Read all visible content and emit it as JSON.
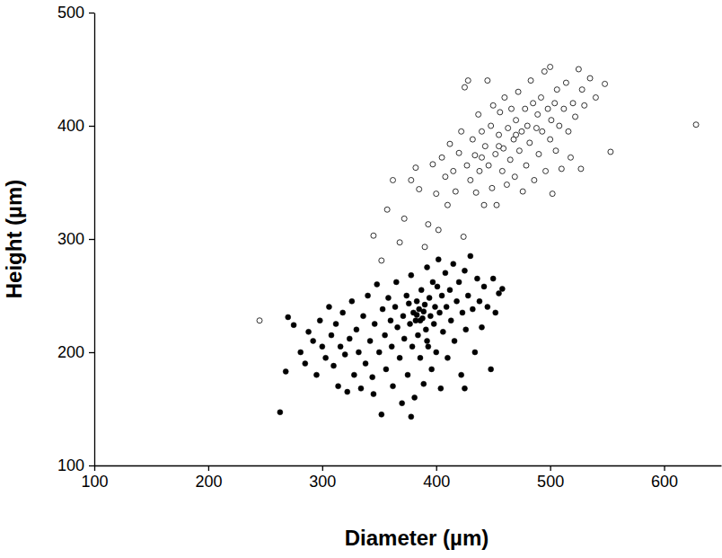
{
  "chart_data": {
    "type": "scatter",
    "x_label": "Diameter (µm)",
    "y_label": "Height (µm)",
    "xlim": [
      100,
      650
    ],
    "xticks": [
      100,
      200,
      300,
      400,
      500,
      600
    ],
    "ylim": [
      100,
      500
    ],
    "yticks": [
      100,
      200,
      300,
      400,
      500
    ],
    "grid": false,
    "series": [
      {
        "color": "#000000",
        "marker": "open-circle",
        "x": [
          245,
          345,
          352,
          357,
          362,
          368,
          372,
          378,
          382,
          385,
          390,
          393,
          397,
          400,
          402,
          405,
          408,
          410,
          412,
          415,
          417,
          420,
          422,
          424,
          425,
          427,
          428,
          430,
          432,
          434,
          435,
          437,
          438,
          440,
          442,
          443,
          445,
          446,
          448,
          449,
          450,
          452,
          453,
          455,
          456,
          458,
          459,
          460,
          462,
          463,
          465,
          466,
          468,
          469,
          470,
          472,
          473,
          475,
          476,
          478,
          479,
          480,
          482,
          483,
          485,
          486,
          488,
          489,
          490,
          492,
          493,
          495,
          496,
          498,
          500,
          501,
          502,
          504,
          505,
          506,
          508,
          510,
          512,
          514,
          516,
          518,
          520,
          522,
          525,
          527,
          528,
          530,
          535,
          540,
          548,
          553,
          628,
          440,
          470,
          455,
          500
        ],
        "values": [
          228,
          303,
          281,
          326,
          352,
          297,
          318,
          352,
          363,
          344,
          293,
          313,
          366,
          340,
          308,
          372,
          355,
          330,
          384,
          360,
          342,
          376,
          395,
          302,
          434,
          365,
          440,
          352,
          388,
          374,
          341,
          410,
          360,
          395,
          330,
          382,
          440,
          365,
          400,
          345,
          418,
          375,
          330,
          392,
          412,
          360,
          380,
          425,
          348,
          398,
          370,
          415,
          388,
          355,
          405,
          430,
          378,
          395,
          342,
          415,
          365,
          400,
          385,
          440,
          420,
          352,
          398,
          410,
          375,
          425,
          395,
          448,
          360,
          415,
          388,
          405,
          340,
          420,
          378,
          432,
          400,
          362,
          415,
          438,
          395,
          372,
          420,
          408,
          450,
          362,
          432,
          418,
          442,
          425,
          437,
          377,
          401,
          372,
          392,
          382,
          452
        ]
      },
      {
        "color": "#000000",
        "marker": "filled-circle",
        "x": [
          263,
          268,
          270,
          275,
          281,
          285,
          288,
          292,
          295,
          298,
          300,
          303,
          306,
          308,
          310,
          312,
          314,
          316,
          318,
          320,
          322,
          324,
          326,
          328,
          330,
          332,
          334,
          336,
          338,
          340,
          342,
          344,
          346,
          348,
          350,
          352,
          353,
          355,
          356,
          358,
          360,
          361,
          362,
          364,
          365,
          366,
          368,
          370,
          371,
          372,
          374,
          375,
          376,
          377,
          378,
          379,
          380,
          381,
          382,
          383,
          384,
          385,
          386,
          387,
          388,
          389,
          390,
          391,
          392,
          393,
          394,
          395,
          396,
          397,
          398,
          399,
          400,
          401,
          402,
          403,
          404,
          405,
          406,
          408,
          409,
          410,
          412,
          413,
          415,
          416,
          418,
          420,
          422,
          423,
          425,
          426,
          428,
          430,
          432,
          434,
          436,
          438,
          440,
          442,
          445,
          448,
          450,
          452,
          455,
          458,
          425,
          378,
          345,
          392,
          383,
          386,
          389
        ],
        "values": [
          147,
          183,
          231,
          224,
          200,
          190,
          218,
          210,
          180,
          228,
          205,
          195,
          240,
          215,
          188,
          225,
          170,
          205,
          235,
          198,
          165,
          212,
          245,
          180,
          220,
          200,
          168,
          232,
          190,
          250,
          210,
          178,
          225,
          260,
          200,
          145,
          238,
          215,
          185,
          248,
          228,
          205,
          170,
          240,
          262,
          222,
          195,
          155,
          232,
          212,
          250,
          180,
          243,
          225,
          268,
          205,
          235,
          160,
          228,
          245,
          215,
          238,
          195,
          255,
          230,
          172,
          242,
          220,
          275,
          205,
          248,
          232,
          185,
          262,
          225,
          240,
          200,
          258,
          282,
          235,
          168,
          250,
          218,
          270,
          240,
          195,
          255,
          228,
          278,
          210,
          245,
          262,
          180,
          235,
          272,
          220,
          250,
          285,
          238,
          200,
          265,
          245,
          222,
          258,
          240,
          185,
          265,
          235,
          252,
          256,
          168,
          143,
          163,
          210,
          233,
          228,
          236
        ]
      }
    ]
  }
}
